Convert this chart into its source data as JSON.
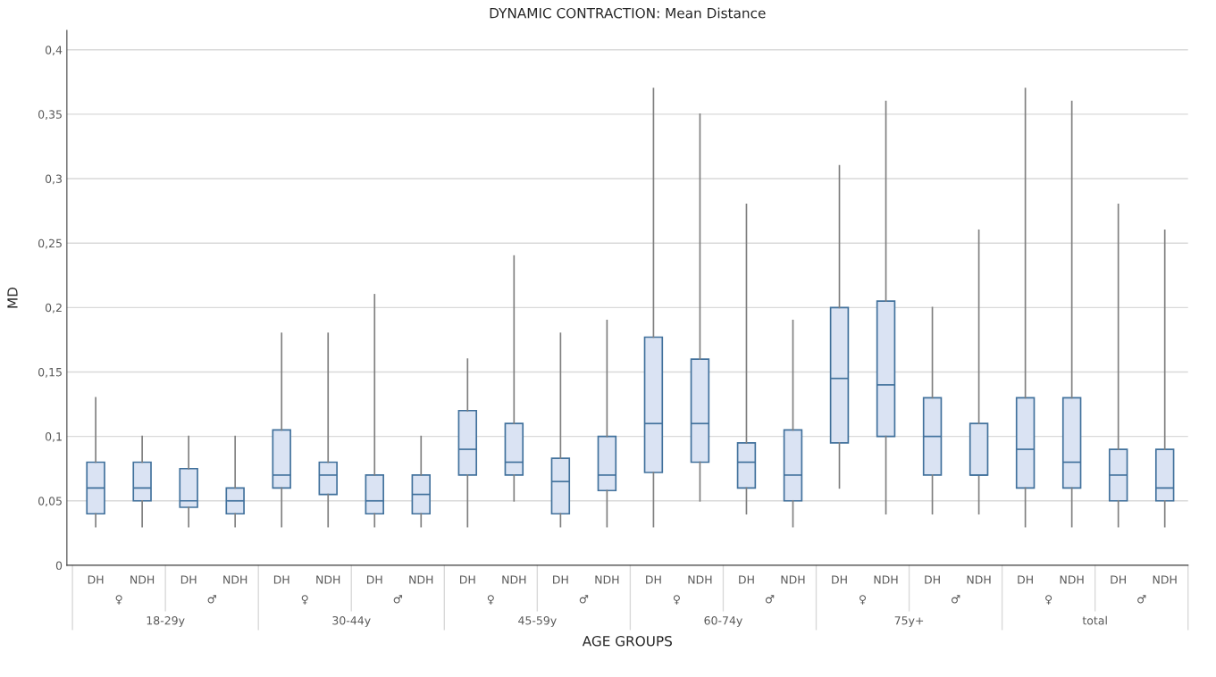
{
  "chart_data": {
    "type": "box",
    "title": "DYNAMIC CONTRACTION: Mean Distance",
    "xlabel": "AGE GROUPS",
    "ylabel": "MD",
    "categories": [
      "DH",
      "NDH",
      "DH",
      "NDH",
      "DH",
      "NDH",
      "DH",
      "NDH",
      "DH",
      "NDH",
      "DH",
      "NDH",
      "DH",
      "NDH",
      "DH",
      "NDH",
      "DH",
      "NDH",
      "DH",
      "NDH",
      "DH",
      "NDH",
      "DH",
      "NDH"
    ],
    "annotations": [
      "♀",
      "♂",
      "♀",
      "♂",
      "♀",
      "♂",
      "♀",
      "♂",
      "♀",
      "♂",
      "♀",
      "♂",
      "18-29y",
      "30-44y",
      "45-59y",
      "60-74y",
      "75y+",
      "total"
    ],
    "ylim": [
      0,
      0.415
    ],
    "yticks": [
      0,
      {
        "value": 0.05,
        "label": "0,05"
      },
      {
        "value": 0.1,
        "label": "0,1"
      },
      {
        "value": 0.15,
        "label": "0,15"
      },
      {
        "value": 0.2,
        "label": "0,2"
      },
      {
        "value": 0.25,
        "label": "0,25"
      },
      {
        "value": 0.3,
        "label": "0,3"
      },
      {
        "value": 0.35,
        "label": "0,35"
      },
      {
        "value": 0.4,
        "label": "0,4"
      }
    ],
    "grid": "y",
    "series": [
      {
        "color": "#dae3f3",
        "boxes": [
          {
            "low": 0.03,
            "q1": 0.04,
            "median": 0.06,
            "q3": 0.08,
            "high": 0.13
          },
          {
            "low": 0.03,
            "q1": 0.05,
            "median": 0.06,
            "q3": 0.08,
            "high": 0.1
          },
          {
            "low": 0.03,
            "q1": 0.045,
            "median": 0.05,
            "q3": 0.075,
            "high": 0.1
          },
          {
            "low": 0.03,
            "q1": 0.04,
            "median": 0.05,
            "q3": 0.06,
            "high": 0.1
          },
          {
            "low": 0.03,
            "q1": 0.06,
            "median": 0.07,
            "q3": 0.105,
            "high": 0.18
          },
          {
            "low": 0.03,
            "q1": 0.055,
            "median": 0.07,
            "q3": 0.08,
            "high": 0.18
          },
          {
            "low": 0.03,
            "q1": 0.04,
            "median": 0.05,
            "q3": 0.07,
            "high": 0.21
          },
          {
            "low": 0.03,
            "q1": 0.04,
            "median": 0.055,
            "q3": 0.07,
            "high": 0.1
          },
          {
            "low": 0.03,
            "q1": 0.07,
            "median": 0.09,
            "q3": 0.12,
            "high": 0.16
          },
          {
            "low": 0.05,
            "q1": 0.07,
            "median": 0.08,
            "q3": 0.11,
            "high": 0.24
          },
          {
            "low": 0.03,
            "q1": 0.04,
            "median": 0.065,
            "q3": 0.083,
            "high": 0.18
          },
          {
            "low": 0.03,
            "q1": 0.058,
            "median": 0.07,
            "q3": 0.1,
            "high": 0.19
          },
          {
            "low": 0.03,
            "q1": 0.072,
            "median": 0.11,
            "q3": 0.177,
            "high": 0.37
          },
          {
            "low": 0.05,
            "q1": 0.08,
            "median": 0.11,
            "q3": 0.16,
            "high": 0.35
          },
          {
            "low": 0.04,
            "q1": 0.06,
            "median": 0.08,
            "q3": 0.095,
            "high": 0.28
          },
          {
            "low": 0.03,
            "q1": 0.05,
            "median": 0.07,
            "q3": 0.105,
            "high": 0.19
          },
          {
            "low": 0.06,
            "q1": 0.095,
            "median": 0.145,
            "q3": 0.2,
            "high": 0.31
          },
          {
            "low": 0.04,
            "q1": 0.1,
            "median": 0.14,
            "q3": 0.205,
            "high": 0.36
          },
          {
            "low": 0.04,
            "q1": 0.07,
            "median": 0.1,
            "q3": 0.13,
            "high": 0.2
          },
          {
            "low": 0.04,
            "q1": 0.07,
            "median": 0.07,
            "q3": 0.11,
            "high": 0.26
          },
          {
            "low": 0.03,
            "q1": 0.06,
            "median": 0.09,
            "q3": 0.13,
            "high": 0.37
          },
          {
            "low": 0.03,
            "q1": 0.06,
            "median": 0.08,
            "q3": 0.13,
            "high": 0.36
          },
          {
            "low": 0.03,
            "q1": 0.05,
            "median": 0.07,
            "q3": 0.09,
            "high": 0.28
          },
          {
            "low": 0.03,
            "q1": 0.05,
            "median": 0.06,
            "q3": 0.09,
            "high": 0.26
          }
        ]
      }
    ]
  }
}
